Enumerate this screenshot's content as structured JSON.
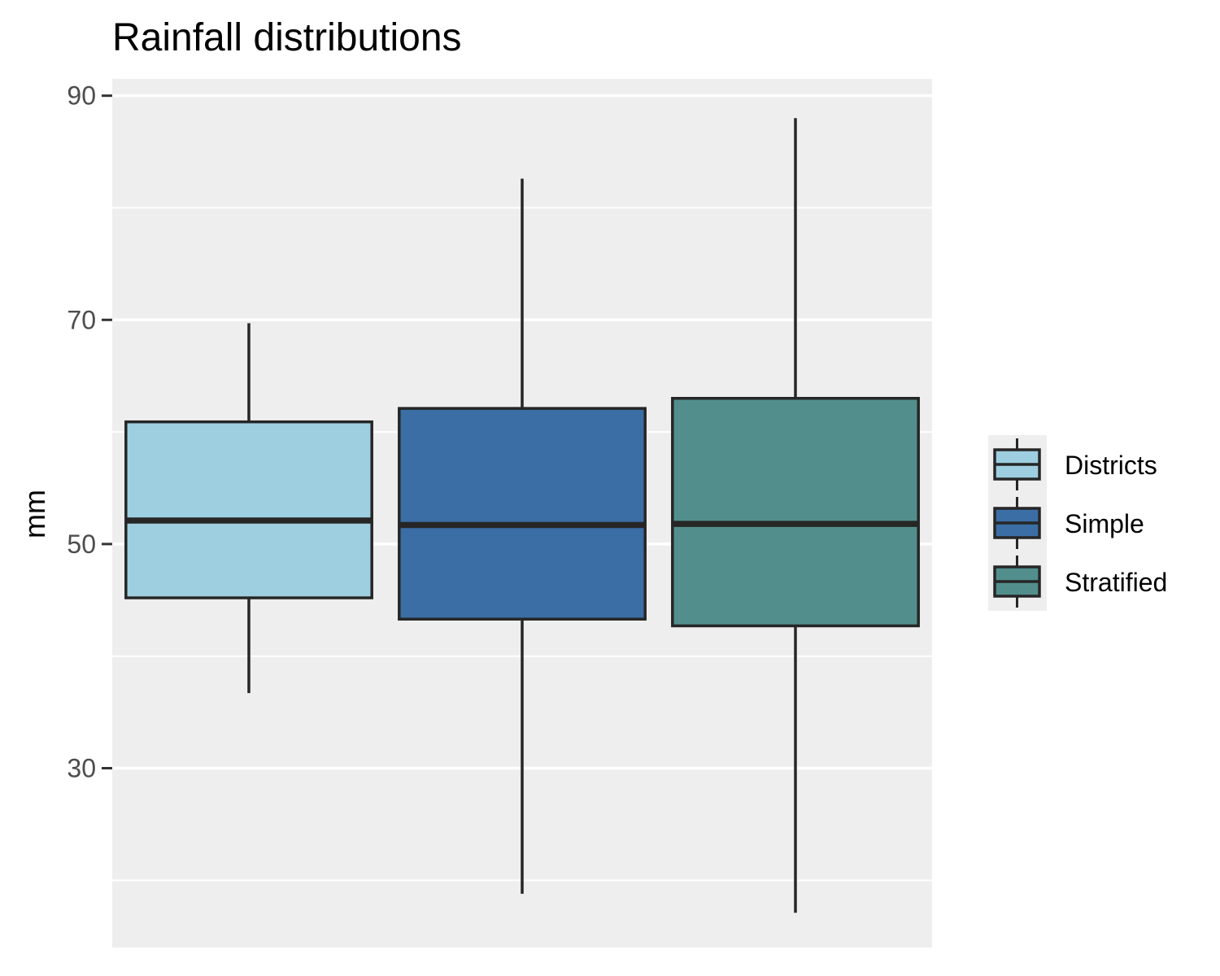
{
  "chart_data": {
    "type": "boxplot",
    "title": "Rainfall distributions",
    "xlabel": "",
    "ylabel": "mm",
    "ylim": [
      14,
      91.5
    ],
    "yticks": [
      30,
      50,
      70,
      90
    ],
    "minor_gridlines": [
      20,
      40,
      60,
      80
    ],
    "grid": true,
    "legend_position": "right",
    "panel_background": "#eeeeee",
    "series": [
      {
        "name": "Districts",
        "color": "#9ecfe0",
        "whisker_low": 36.7,
        "q1": 45.2,
        "median": 52.1,
        "q3": 60.9,
        "whisker_high": 69.7
      },
      {
        "name": "Simple",
        "color": "#3a6ea5",
        "whisker_low": 18.8,
        "q1": 43.3,
        "median": 51.7,
        "q3": 62.1,
        "whisker_high": 82.6
      },
      {
        "name": "Stratified",
        "color": "#528f8c",
        "whisker_low": 17.1,
        "q1": 42.7,
        "median": 51.8,
        "q3": 63.0,
        "whisker_high": 88.0
      }
    ]
  }
}
